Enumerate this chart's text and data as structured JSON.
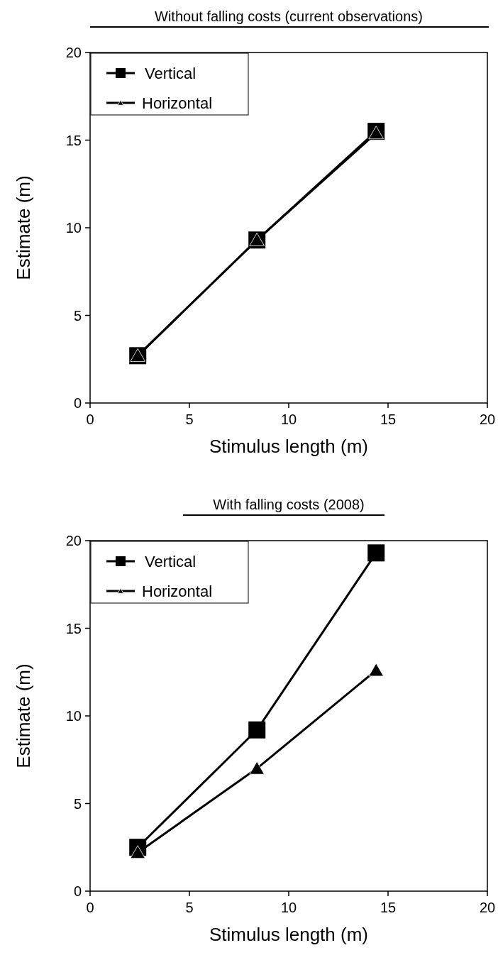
{
  "chart_data": [
    {
      "type": "line",
      "title": "Without falling costs (current observations)",
      "xlabel": "Stimulus length (m)",
      "ylabel": "Estimate (m)",
      "x": [
        2.4,
        8.4,
        14.4
      ],
      "xlim": [
        0,
        20
      ],
      "xticks": [
        0,
        5,
        10,
        15,
        20
      ],
      "ylim": [
        0,
        20
      ],
      "yticks": [
        0,
        5,
        10,
        15,
        20
      ],
      "legend": "top left",
      "grid": false,
      "series": [
        {
          "name": "Vertical",
          "color": "#000000",
          "marker": "square",
          "values": [
            2.7,
            9.3,
            15.5
          ]
        },
        {
          "name": "Horizontal",
          "color": "#000000",
          "marker": "triangle",
          "values": [
            2.7,
            9.3,
            15.4
          ]
        }
      ]
    },
    {
      "type": "line",
      "title": "With falling costs (2008)",
      "xlabel": "Stimulus length (m)",
      "ylabel": "Estimate (m)",
      "x": [
        2.4,
        8.4,
        14.4
      ],
      "xlim": [
        0,
        20
      ],
      "xticks": [
        0,
        5,
        10,
        15,
        20
      ],
      "ylim": [
        0,
        20
      ],
      "yticks": [
        0,
        5,
        10,
        15,
        20
      ],
      "legend": "top left",
      "grid": false,
      "series": [
        {
          "name": "Vertical",
          "color": "#000000",
          "marker": "square",
          "values": [
            2.5,
            9.2,
            19.3
          ]
        },
        {
          "name": "Horizontal",
          "color": "#000000",
          "marker": "triangle",
          "values": [
            2.2,
            7.0,
            12.6
          ]
        }
      ]
    }
  ]
}
